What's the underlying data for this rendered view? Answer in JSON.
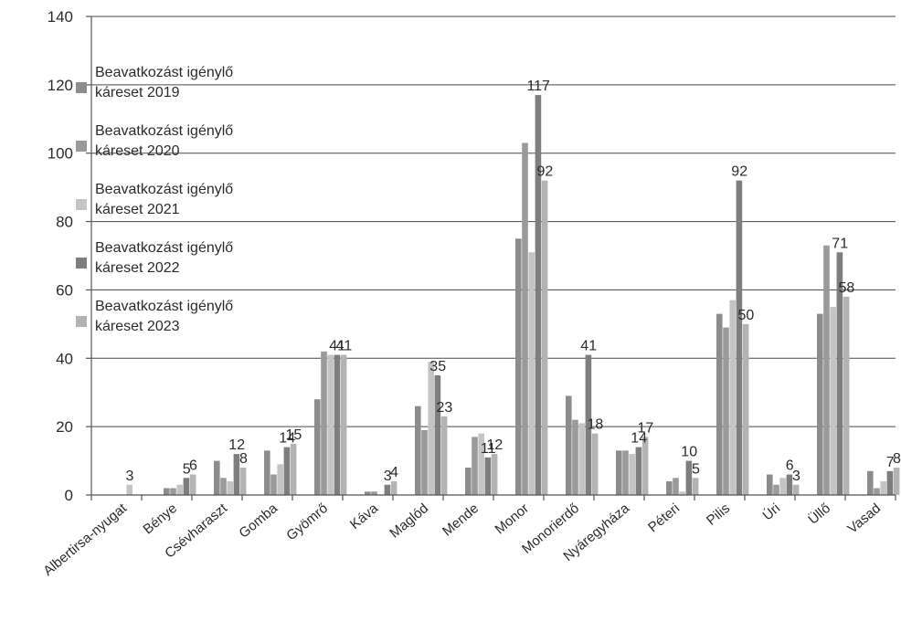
{
  "chart_data": {
    "type": "bar",
    "title": "",
    "xlabel": "",
    "ylabel": "",
    "ylim": [
      0,
      140
    ],
    "yticks": [
      0,
      20,
      40,
      60,
      80,
      100,
      120,
      140
    ],
    "grid": true,
    "legend_position": "left",
    "categories": [
      "Albertirsa-nyugat",
      "Bénye",
      "Csévharaszt",
      "Gomba",
      "Gyömrő",
      "Káva",
      "Maglód",
      "Mende",
      "Monor",
      "Monorierdő",
      "Nyáregyháza",
      "Péteri",
      "Pilis",
      "Úri",
      "Üllő",
      "Vasad"
    ],
    "series": [
      {
        "name": "Beavatkozást igénylő káreset 2019",
        "legend_line1": "Beavatkozást igénylő",
        "legend_line2": "káreset 2019",
        "color": "#8c8c8c",
        "values": [
          0,
          2,
          10,
          13,
          28,
          1,
          26,
          8,
          75,
          29,
          13,
          4,
          53,
          6,
          53,
          7
        ]
      },
      {
        "name": "Beavatkozást igénylő káreset 2020",
        "legend_line1": "Beavatkozást igénylő",
        "legend_line2": "káreset 2020",
        "color": "#9a9a9a",
        "values": [
          0,
          2,
          5,
          6,
          42,
          1,
          19,
          17,
          103,
          22,
          13,
          5,
          49,
          3,
          73,
          2
        ]
      },
      {
        "name": "Beavatkozást igénylő káreset 2021",
        "legend_line1": "Beavatkozást igénylő",
        "legend_line2": "káreset 2021",
        "color": "#c4c4c4",
        "values": [
          3,
          3,
          4,
          9,
          41,
          0,
          39,
          18,
          71,
          21,
          12,
          1,
          57,
          5,
          55,
          4
        ]
      },
      {
        "name": "Beavatkozást igénylő káreset 2022",
        "legend_line1": "Beavatkozást igénylő",
        "legend_line2": "káreset 2022",
        "color": "#7e7e7e",
        "values": [
          0,
          5,
          12,
          14,
          41,
          3,
          35,
          11,
          117,
          41,
          14,
          10,
          92,
          6,
          71,
          7
        ]
      },
      {
        "name": "Beavatkozást igénylő káreset 2023",
        "legend_line1": "Beavatkozást igénylő",
        "legend_line2": "káreset 2023",
        "color": "#b3b3b3",
        "values": [
          0,
          6,
          8,
          15,
          41,
          4,
          23,
          12,
          92,
          18,
          17,
          5,
          50,
          3,
          58,
          8
        ]
      }
    ],
    "data_labels": [
      {
        "category": "Albertirsa-nyugat",
        "series": 2,
        "text": "3"
      },
      {
        "category": "Bénye",
        "series": 3,
        "text": "5"
      },
      {
        "category": "Bénye",
        "series": 4,
        "text": "6"
      },
      {
        "category": "Csévharaszt",
        "series": 3,
        "text": "12"
      },
      {
        "category": "Csévharaszt",
        "series": 4,
        "text": "8"
      },
      {
        "category": "Gomba",
        "series": 3,
        "text": "14"
      },
      {
        "category": "Gomba",
        "series": 4,
        "text": "15"
      },
      {
        "category": "Gyömrő",
        "series": 3,
        "text": "41"
      },
      {
        "category": "Gyömrő",
        "series": 4,
        "text": "41"
      },
      {
        "category": "Káva",
        "series": 3,
        "text": "3"
      },
      {
        "category": "Káva",
        "series": 4,
        "text": "4"
      },
      {
        "category": "Maglód",
        "series": 3,
        "text": "35"
      },
      {
        "category": "Maglód",
        "series": 4,
        "text": "23"
      },
      {
        "category": "Mende",
        "series": 3,
        "text": "11"
      },
      {
        "category": "Mende",
        "series": 4,
        "text": "12"
      },
      {
        "category": "Monor",
        "series": 3,
        "text": "117"
      },
      {
        "category": "Monor",
        "series": 4,
        "text": "92"
      },
      {
        "category": "Monorierdő",
        "series": 3,
        "text": "41"
      },
      {
        "category": "Monorierdő",
        "series": 4,
        "text": "18"
      },
      {
        "category": "Nyáregyháza",
        "series": 3,
        "text": "14"
      },
      {
        "category": "Nyáregyháza",
        "series": 4,
        "text": "17"
      },
      {
        "category": "Péteri",
        "series": 3,
        "text": "10"
      },
      {
        "category": "Péteri",
        "series": 4,
        "text": "5"
      },
      {
        "category": "Pilis",
        "series": 3,
        "text": "92"
      },
      {
        "category": "Pilis",
        "series": 4,
        "text": "50"
      },
      {
        "category": "Úri",
        "series": 3,
        "text": "6"
      },
      {
        "category": "Úri",
        "series": 4,
        "text": "3"
      },
      {
        "category": "Üllő",
        "series": 3,
        "text": "71"
      },
      {
        "category": "Üllő",
        "series": 4,
        "text": "58"
      },
      {
        "category": "Vasad",
        "series": 3,
        "text": "7"
      },
      {
        "category": "Vasad",
        "series": 4,
        "text": "8"
      }
    ]
  }
}
